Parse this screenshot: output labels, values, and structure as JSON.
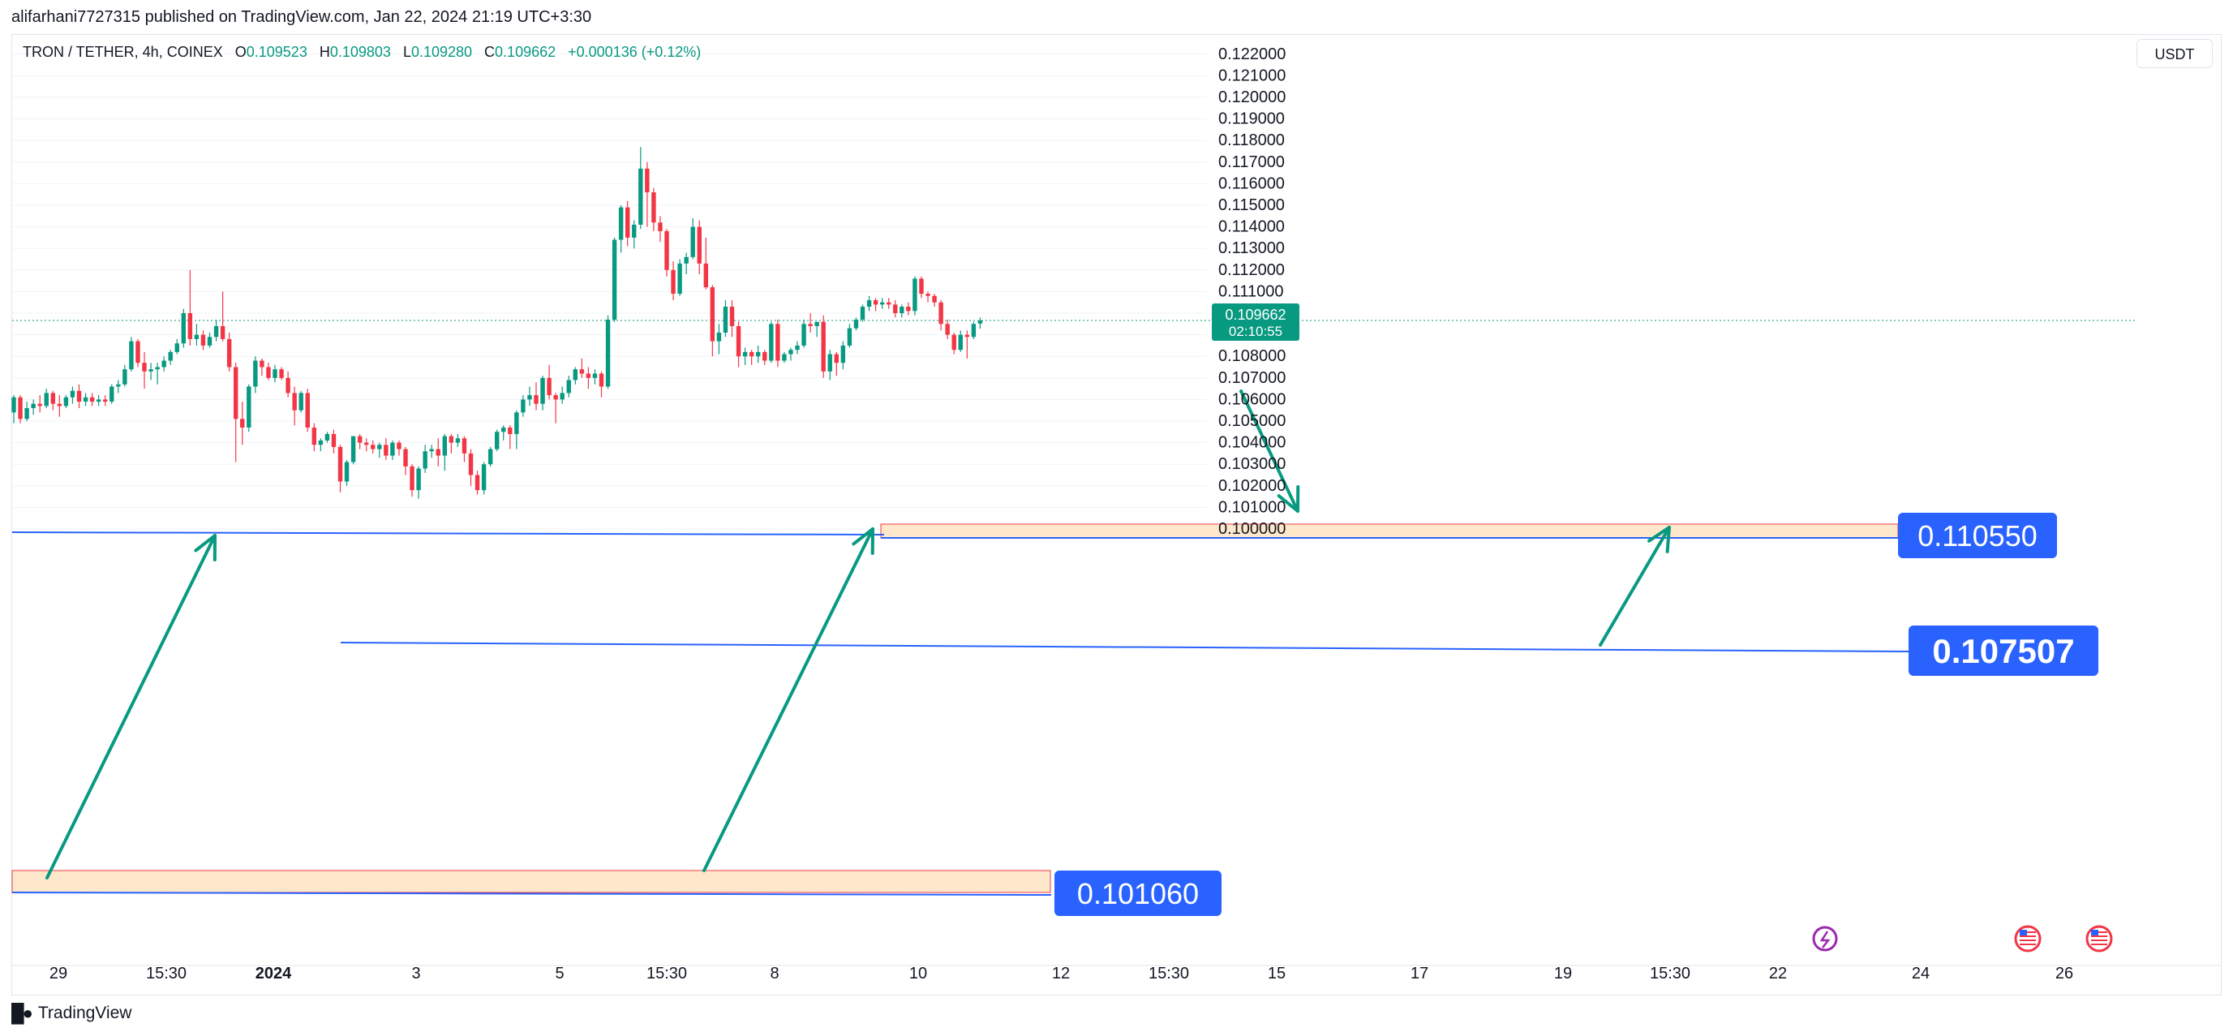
{
  "header": {
    "published": "alifarhani7727315 published on TradingView.com, Jan 22, 2024 21:19 UTC+3:30"
  },
  "legend": {
    "symbol": "TRON / TETHER, 4h, COINEX",
    "o_label": "O",
    "o_value": "0.109523",
    "h_label": "H",
    "h_value": "0.109803",
    "l_label": "L",
    "l_value": "0.109280",
    "c_label": "C",
    "c_value": "0.109662",
    "change": "+0.000136 (+0.12%)"
  },
  "toolbar": {
    "currency": "USDT"
  },
  "footer": {
    "brand": "TradingView"
  },
  "colors": {
    "up": "#089981",
    "down": "#f23645",
    "level_line": "#2962ff",
    "zone_fill": "#fde8cc",
    "zone_border": "#f23645",
    "arrow": "#089981",
    "label_bg": "#2962ff"
  },
  "chart_data": {
    "type": "candlestick",
    "symbol": "TRON / TETHER",
    "interval": "4h",
    "exchange": "COINEX",
    "y_axis": {
      "ticks": [
        "0.100000",
        "0.101000",
        "0.102000",
        "0.103000",
        "0.104000",
        "0.105000",
        "0.106000",
        "0.107000",
        "0.108000",
        "0.109000",
        "0.110000",
        "0.111000",
        "0.112000",
        "0.113000",
        "0.114000",
        "0.115000",
        "0.116000",
        "0.117000",
        "0.118000",
        "0.119000",
        "0.120000",
        "0.121000",
        "0.122000"
      ],
      "range": [
        0.0995,
        0.1225
      ]
    },
    "x_axis": {
      "ticks": [
        {
          "label": "29",
          "bold": false
        },
        {
          "label": "15:30",
          "bold": false
        },
        {
          "label": "2024",
          "bold": true
        },
        {
          "label": "3",
          "bold": false
        },
        {
          "label": "5",
          "bold": false
        },
        {
          "label": "15:30",
          "bold": false
        },
        {
          "label": "8",
          "bold": false
        },
        {
          "label": "10",
          "bold": false
        },
        {
          "label": "12",
          "bold": false
        },
        {
          "label": "15:30",
          "bold": false
        },
        {
          "label": "15",
          "bold": false
        },
        {
          "label": "17",
          "bold": false
        },
        {
          "label": "19",
          "bold": false
        },
        {
          "label": "15:30",
          "bold": false
        },
        {
          "label": "22",
          "bold": false
        },
        {
          "label": "24",
          "bold": false
        },
        {
          "label": "26",
          "bold": false
        }
      ]
    },
    "current_price": {
      "price": "0.109662",
      "countdown": "02:10:55"
    },
    "levels": [
      {
        "label": "0.110550",
        "price": 0.11055
      },
      {
        "label": "0.107507",
        "price": 0.107507
      },
      {
        "label": "0.101060",
        "price": 0.10106
      }
    ],
    "candles": [
      [
        0.1054,
        0.1062,
        0.1049,
        0.1061
      ],
      [
        0.1061,
        0.1062,
        0.1049,
        0.1051
      ],
      [
        0.1051,
        0.1059,
        0.105,
        0.1056
      ],
      [
        0.1056,
        0.106,
        0.1053,
        0.1058
      ],
      [
        0.1058,
        0.1062,
        0.1054,
        0.1057
      ],
      [
        0.1057,
        0.1065,
        0.1056,
        0.1063
      ],
      [
        0.1063,
        0.1064,
        0.1055,
        0.1058
      ],
      [
        0.1058,
        0.1062,
        0.1052,
        0.1057
      ],
      [
        0.1057,
        0.1062,
        0.1056,
        0.1061
      ],
      [
        0.1061,
        0.1066,
        0.1058,
        0.1064
      ],
      [
        0.1064,
        0.1067,
        0.1056,
        0.1059
      ],
      [
        0.1059,
        0.1063,
        0.1057,
        0.1061
      ],
      [
        0.1061,
        0.1063,
        0.1057,
        0.1059
      ],
      [
        0.1059,
        0.1062,
        0.1057,
        0.106
      ],
      [
        0.106,
        0.1062,
        0.1057,
        0.1059
      ],
      [
        0.1059,
        0.1067,
        0.1058,
        0.1066
      ],
      [
        0.1066,
        0.1069,
        0.1063,
        0.1067
      ],
      [
        0.1067,
        0.1076,
        0.1066,
        0.1074
      ],
      [
        0.1074,
        0.1089,
        0.1073,
        0.1087
      ],
      [
        0.1087,
        0.1088,
        0.1075,
        0.1077
      ],
      [
        0.1077,
        0.1082,
        0.1065,
        0.1073
      ],
      [
        0.1073,
        0.1077,
        0.1069,
        0.1074
      ],
      [
        0.1074,
        0.1077,
        0.1067,
        0.1075
      ],
      [
        0.1075,
        0.108,
        0.1073,
        0.1078
      ],
      [
        0.1078,
        0.1083,
        0.1076,
        0.1082
      ],
      [
        0.1082,
        0.1088,
        0.1081,
        0.1086
      ],
      [
        0.1086,
        0.1102,
        0.1084,
        0.11
      ],
      [
        0.11,
        0.112,
        0.1085,
        0.1088
      ],
      [
        0.1088,
        0.1095,
        0.1085,
        0.109
      ],
      [
        0.109,
        0.1092,
        0.1083,
        0.1085
      ],
      [
        0.1085,
        0.1091,
        0.1084,
        0.1089
      ],
      [
        0.1089,
        0.1097,
        0.1087,
        0.1094
      ],
      [
        0.1094,
        0.111,
        0.1087,
        0.1088
      ],
      [
        0.1088,
        0.1091,
        0.1073,
        0.1075
      ],
      [
        0.1075,
        0.1077,
        0.1031,
        0.1051
      ],
      [
        0.1051,
        0.1059,
        0.1039,
        0.1047
      ],
      [
        0.1047,
        0.1067,
        0.1045,
        0.1066
      ],
      [
        0.1066,
        0.108,
        0.1063,
        0.1078
      ],
      [
        0.1078,
        0.1079,
        0.1071,
        0.1075
      ],
      [
        0.1075,
        0.1077,
        0.1069,
        0.107
      ],
      [
        0.107,
        0.1076,
        0.1068,
        0.1074
      ],
      [
        0.1074,
        0.1075,
        0.1069,
        0.107
      ],
      [
        0.107,
        0.1073,
        0.1061,
        0.1063
      ],
      [
        0.1063,
        0.1066,
        0.1048,
        0.1055
      ],
      [
        0.1055,
        0.1064,
        0.1054,
        0.1063
      ],
      [
        0.1063,
        0.1065,
        0.1045,
        0.1047
      ],
      [
        0.1047,
        0.1049,
        0.1036,
        0.1039
      ],
      [
        0.1039,
        0.1042,
        0.1036,
        0.1041
      ],
      [
        0.1041,
        0.1045,
        0.104,
        0.1044
      ],
      [
        0.1044,
        0.1046,
        0.1035,
        0.1038
      ],
      [
        0.1038,
        0.1039,
        0.1017,
        0.1022
      ],
      [
        0.1022,
        0.1032,
        0.102,
        0.1031
      ],
      [
        0.1031,
        0.1042,
        0.103,
        0.1043
      ],
      [
        0.1043,
        0.1044,
        0.1037,
        0.104
      ],
      [
        0.104,
        0.1042,
        0.1036,
        0.1039
      ],
      [
        0.1039,
        0.1041,
        0.1035,
        0.1037
      ],
      [
        0.1037,
        0.104,
        0.1033,
        0.1039
      ],
      [
        0.1039,
        0.1042,
        0.1032,
        0.1034
      ],
      [
        0.1034,
        0.1041,
        0.1032,
        0.104
      ],
      [
        0.104,
        0.1041,
        0.1034,
        0.1037
      ],
      [
        0.1037,
        0.1038,
        0.1025,
        0.1029
      ],
      [
        0.1029,
        0.103,
        0.1015,
        0.1018
      ],
      [
        0.1018,
        0.1029,
        0.1014,
        0.1028
      ],
      [
        0.1028,
        0.1039,
        0.1026,
        0.1036
      ],
      [
        0.1036,
        0.1039,
        0.1033,
        0.1037
      ],
      [
        0.1037,
        0.1042,
        0.1029,
        0.1034
      ],
      [
        0.1034,
        0.1044,
        0.1027,
        0.1043
      ],
      [
        0.1043,
        0.1044,
        0.1035,
        0.104
      ],
      [
        0.104,
        0.1044,
        0.1038,
        0.1042
      ],
      [
        0.1042,
        0.1043,
        0.1031,
        0.1035
      ],
      [
        0.1035,
        0.1037,
        0.102,
        0.1025
      ],
      [
        0.1025,
        0.1027,
        0.1016,
        0.1018
      ],
      [
        0.1018,
        0.1031,
        0.1016,
        0.103
      ],
      [
        0.103,
        0.1038,
        0.1029,
        0.1037
      ],
      [
        0.1037,
        0.1046,
        0.1036,
        0.1045
      ],
      [
        0.1045,
        0.1048,
        0.1041,
        0.1047
      ],
      [
        0.1047,
        0.1048,
        0.1037,
        0.1044
      ],
      [
        0.1044,
        0.1055,
        0.1037,
        0.1054
      ],
      [
        0.1054,
        0.1062,
        0.1052,
        0.106
      ],
      [
        0.106,
        0.1066,
        0.1057,
        0.1062
      ],
      [
        0.1062,
        0.1068,
        0.1055,
        0.1058
      ],
      [
        0.1058,
        0.1071,
        0.1055,
        0.107
      ],
      [
        0.107,
        0.1076,
        0.106,
        0.1062
      ],
      [
        0.1062,
        0.1063,
        0.1049,
        0.106
      ],
      [
        0.106,
        0.1066,
        0.1058,
        0.1063
      ],
      [
        0.1063,
        0.1071,
        0.1061,
        0.1069
      ],
      [
        0.1069,
        0.1075,
        0.1067,
        0.1074
      ],
      [
        0.1074,
        0.1079,
        0.107,
        0.1072
      ],
      [
        0.1072,
        0.1075,
        0.1065,
        0.107
      ],
      [
        0.107,
        0.1074,
        0.1067,
        0.1072
      ],
      [
        0.1072,
        0.1073,
        0.1061,
        0.1066
      ],
      [
        0.1066,
        0.1099,
        0.1065,
        0.1097
      ],
      [
        0.1097,
        0.1135,
        0.1096,
        0.1134
      ],
      [
        0.1134,
        0.115,
        0.1128,
        0.1149
      ],
      [
        0.1149,
        0.1152,
        0.1131,
        0.1135
      ],
      [
        0.1135,
        0.1143,
        0.113,
        0.1141
      ],
      [
        0.1141,
        0.1177,
        0.1139,
        0.1167
      ],
      [
        0.1167,
        0.117,
        0.114,
        0.1156
      ],
      [
        0.1156,
        0.1158,
        0.1138,
        0.1142
      ],
      [
        0.1142,
        0.1145,
        0.1133,
        0.1138
      ],
      [
        0.1138,
        0.1139,
        0.1117,
        0.112
      ],
      [
        0.112,
        0.1124,
        0.1106,
        0.1109
      ],
      [
        0.1109,
        0.1125,
        0.1108,
        0.1123
      ],
      [
        0.1123,
        0.1128,
        0.1118,
        0.1126
      ],
      [
        0.1126,
        0.1144,
        0.1125,
        0.114
      ],
      [
        0.114,
        0.1143,
        0.1118,
        0.1123
      ],
      [
        0.1123,
        0.1135,
        0.1111,
        0.1112
      ],
      [
        0.1112,
        0.1113,
        0.108,
        0.1087
      ],
      [
        0.1087,
        0.1095,
        0.1081,
        0.1091
      ],
      [
        0.1091,
        0.1106,
        0.1089,
        0.1103
      ],
      [
        0.1103,
        0.1106,
        0.1089,
        0.1094
      ],
      [
        0.1094,
        0.1096,
        0.1075,
        0.108
      ],
      [
        0.108,
        0.1084,
        0.1076,
        0.1082
      ],
      [
        0.1082,
        0.1083,
        0.1076,
        0.108
      ],
      [
        0.108,
        0.1085,
        0.1077,
        0.1082
      ],
      [
        0.1082,
        0.1083,
        0.1076,
        0.1078
      ],
      [
        0.1078,
        0.1096,
        0.1077,
        0.1095
      ],
      [
        0.1095,
        0.1097,
        0.1075,
        0.1078
      ],
      [
        0.1078,
        0.1082,
        0.1077,
        0.1081
      ],
      [
        0.1081,
        0.1084,
        0.1078,
        0.1083
      ],
      [
        0.1083,
        0.1087,
        0.1081,
        0.1085
      ],
      [
        0.1085,
        0.1097,
        0.1084,
        0.1095
      ],
      [
        0.1095,
        0.11,
        0.1091,
        0.1094
      ],
      [
        0.1094,
        0.1096,
        0.1089,
        0.1096
      ],
      [
        0.1096,
        0.1099,
        0.107,
        0.1073
      ],
      [
        0.1073,
        0.1083,
        0.1069,
        0.1081
      ],
      [
        0.1081,
        0.1082,
        0.1071,
        0.1077
      ],
      [
        0.1077,
        0.1087,
        0.1074,
        0.1085
      ],
      [
        0.1085,
        0.1095,
        0.1084,
        0.1093
      ],
      [
        0.1093,
        0.1098,
        0.1092,
        0.1097
      ],
      [
        0.1097,
        0.1104,
        0.1096,
        0.1103
      ],
      [
        0.1103,
        0.1108,
        0.1101,
        0.1106
      ],
      [
        0.1106,
        0.1107,
        0.1101,
        0.1104
      ],
      [
        0.1104,
        0.1107,
        0.1102,
        0.1105
      ],
      [
        0.1105,
        0.1107,
        0.1102,
        0.1104
      ],
      [
        0.1104,
        0.1106,
        0.1098,
        0.11
      ],
      [
        0.11,
        0.1104,
        0.1098,
        0.1103
      ],
      [
        0.1103,
        0.1105,
        0.1099,
        0.1101
      ],
      [
        0.1101,
        0.1117,
        0.1099,
        0.1116
      ],
      [
        0.1116,
        0.1117,
        0.1107,
        0.1109
      ],
      [
        0.1109,
        0.111,
        0.1105,
        0.1108
      ],
      [
        0.1108,
        0.1109,
        0.1103,
        0.1105
      ],
      [
        0.1105,
        0.1106,
        0.1092,
        0.1095
      ],
      [
        0.1095,
        0.1097,
        0.1088,
        0.109
      ],
      [
        0.109,
        0.1091,
        0.1081,
        0.1083
      ],
      [
        0.1083,
        0.1092,
        0.1082,
        0.109
      ],
      [
        0.109,
        0.1092,
        0.1079,
        0.1089
      ],
      [
        0.1089,
        0.1096,
        0.1088,
        0.1095
      ],
      [
        0.10952,
        0.1098,
        0.10928,
        0.10966
      ]
    ]
  }
}
